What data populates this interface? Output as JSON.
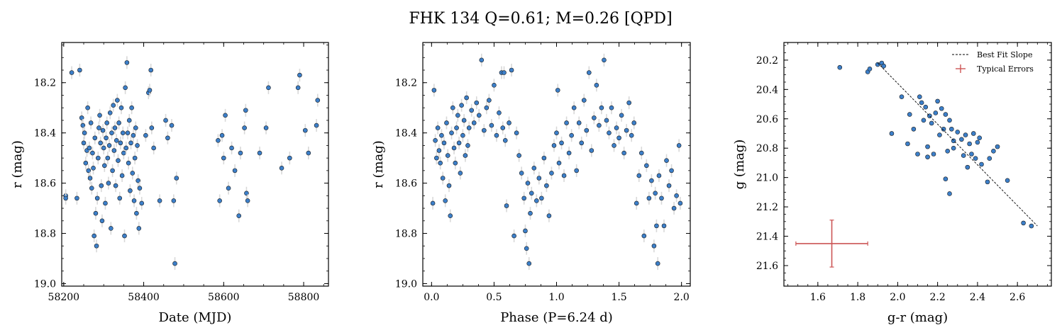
{
  "figure": {
    "title": "FHK 134  Q=0.61; M=0.26 [QPD]"
  },
  "colors": {
    "point_fill": "#3c7fc9",
    "point_edge": "#1a1a1a",
    "errorbar": "#d8d8d8",
    "typical_error": "#cc5555",
    "fit_line": "#000000"
  },
  "chart_data": [
    {
      "type": "scatter",
      "name": "light-curve",
      "xlabel": "Date (MJD)",
      "ylabel": "r (mag)",
      "xlim": [
        58195,
        58862
      ],
      "ylim": [
        19.01,
        18.04
      ],
      "y_inverted": true,
      "xticks": [
        58200,
        58400,
        58600,
        58800
      ],
      "xtick_labels": [
        "58200",
        "58400",
        "58600",
        "58800"
      ],
      "yticks": [
        18.2,
        18.4,
        18.6,
        18.8,
        19.0
      ],
      "ytick_labels": [
        "18.2",
        "18.4",
        "18.6",
        "18.8",
        "19.0"
      ],
      "points": [
        [
          58205,
          18.65
        ],
        [
          58205,
          18.66
        ],
        [
          58220,
          18.16
        ],
        [
          58233,
          18.66
        ],
        [
          58240,
          18.15
        ],
        [
          58245,
          18.34
        ],
        [
          58248,
          18.37
        ],
        [
          58250,
          18.44
        ],
        [
          58252,
          18.4
        ],
        [
          58255,
          18.52
        ],
        [
          58258,
          18.47
        ],
        [
          58260,
          18.3
        ],
        [
          58262,
          18.55
        ],
        [
          58264,
          18.46
        ],
        [
          58266,
          18.58
        ],
        [
          58268,
          18.36
        ],
        [
          58270,
          18.62
        ],
        [
          58272,
          18.48
        ],
        [
          58274,
          18.54
        ],
        [
          58276,
          18.81
        ],
        [
          58278,
          18.42
        ],
        [
          58280,
          18.72
        ],
        [
          58282,
          18.85
        ],
        [
          58284,
          18.66
        ],
        [
          58286,
          18.5
        ],
        [
          58288,
          18.38
        ],
        [
          58290,
          18.33
        ],
        [
          58292,
          18.44
        ],
        [
          58294,
          18.61
        ],
        [
          58296,
          18.75
        ],
        [
          58298,
          18.39
        ],
        [
          58300,
          18.46
        ],
        [
          58302,
          18.53
        ],
        [
          58304,
          18.68
        ],
        [
          58306,
          18.42
        ],
        [
          58308,
          18.36
        ],
        [
          58310,
          18.5
        ],
        [
          58312,
          18.6
        ],
        [
          58314,
          18.45
        ],
        [
          58316,
          18.32
        ],
        [
          58318,
          18.78
        ],
        [
          58320,
          18.4
        ],
        [
          58322,
          18.55
        ],
        [
          58324,
          18.29
        ],
        [
          58326,
          18.47
        ],
        [
          58328,
          18.38
        ],
        [
          58330,
          18.61
        ],
        [
          58332,
          18.43
        ],
        [
          58334,
          18.27
        ],
        [
          58336,
          18.51
        ],
        [
          58338,
          18.36
        ],
        [
          58340,
          18.66
        ],
        [
          58342,
          18.44
        ],
        [
          58344,
          18.3
        ],
        [
          58346,
          18.57
        ],
        [
          58348,
          18.4
        ],
        [
          58350,
          18.48
        ],
        [
          58352,
          18.81
        ],
        [
          58354,
          18.22
        ],
        [
          58356,
          18.46
        ],
        [
          58358,
          18.12
        ],
        [
          58360,
          18.4
        ],
        [
          58362,
          18.52
        ],
        [
          58364,
          18.35
        ],
        [
          58366,
          18.63
        ],
        [
          58368,
          18.44
        ],
        [
          58370,
          18.3
        ],
        [
          58372,
          18.56
        ],
        [
          58374,
          18.41
        ],
        [
          58376,
          18.67
        ],
        [
          58378,
          18.5
        ],
        [
          58380,
          18.38
        ],
        [
          58382,
          18.72
        ],
        [
          58384,
          18.45
        ],
        [
          58386,
          18.59
        ],
        [
          58388,
          18.78
        ],
        [
          58390,
          18.62
        ],
        [
          58395,
          18.68
        ],
        [
          58405,
          18.41
        ],
        [
          58412,
          18.24
        ],
        [
          58415,
          18.23
        ],
        [
          58418,
          18.15
        ],
        [
          58420,
          18.38
        ],
        [
          58425,
          18.46
        ],
        [
          58440,
          18.67
        ],
        [
          58455,
          18.35
        ],
        [
          58460,
          18.42
        ],
        [
          58470,
          18.37
        ],
        [
          58475,
          18.67
        ],
        [
          58478,
          18.92
        ],
        [
          58482,
          18.58
        ],
        [
          58586,
          18.43
        ],
        [
          58590,
          18.67
        ],
        [
          58596,
          18.41
        ],
        [
          58600,
          18.5
        ],
        [
          58604,
          18.33
        ],
        [
          58612,
          18.62
        ],
        [
          58620,
          18.46
        ],
        [
          58628,
          18.55
        ],
        [
          58638,
          18.73
        ],
        [
          58642,
          18.48
        ],
        [
          58652,
          18.38
        ],
        [
          58655,
          18.31
        ],
        [
          58657,
          18.64
        ],
        [
          58660,
          18.67
        ],
        [
          58690,
          18.48
        ],
        [
          58706,
          18.38
        ],
        [
          58712,
          18.22
        ],
        [
          58745,
          18.54
        ],
        [
          58765,
          18.5
        ],
        [
          58786,
          18.22
        ],
        [
          58790,
          18.17
        ],
        [
          58804,
          18.39
        ],
        [
          58812,
          18.48
        ],
        [
          58832,
          18.37
        ],
        [
          58835,
          18.27
        ]
      ]
    },
    {
      "type": "scatter",
      "name": "phase-folded",
      "xlabel": "Phase (P=6.24 d)",
      "ylabel": "r (mag)",
      "xlim": [
        -0.07,
        2.07
      ],
      "ylim": [
        19.01,
        18.04
      ],
      "y_inverted": true,
      "xticks": [
        0.0,
        0.5,
        1.0,
        1.5,
        2.0
      ],
      "xtick_labels": [
        "0.0",
        "0.5",
        "1.0",
        "1.5",
        "2.0"
      ],
      "yticks": [
        18.2,
        18.4,
        18.6,
        18.8,
        19.0
      ],
      "ytick_labels": [
        "18.2",
        "18.4",
        "18.6",
        "18.8",
        "19.0"
      ],
      "points": [
        [
          0.01,
          18.68
        ],
        [
          0.02,
          18.23
        ],
        [
          0.03,
          18.43
        ],
        [
          0.04,
          18.5
        ],
        [
          0.05,
          18.38
        ],
        [
          0.06,
          18.47
        ],
        [
          0.07,
          18.52
        ],
        [
          0.08,
          18.41
        ],
        [
          0.09,
          18.58
        ],
        [
          0.1,
          18.44
        ],
        [
          0.11,
          18.67
        ],
        [
          0.12,
          18.36
        ],
        [
          0.13,
          18.49
        ],
        [
          0.14,
          18.61
        ],
        [
          0.15,
          18.73
        ],
        [
          0.16,
          18.4
        ],
        [
          0.17,
          18.3
        ],
        [
          0.18,
          18.46
        ],
        [
          0.19,
          18.52
        ],
        [
          0.2,
          18.38
        ],
        [
          0.21,
          18.33
        ],
        [
          0.22,
          18.44
        ],
        [
          0.23,
          18.56
        ],
        [
          0.24,
          18.29
        ],
        [
          0.25,
          18.41
        ],
        [
          0.26,
          18.35
        ],
        [
          0.27,
          18.49
        ],
        [
          0.28,
          18.26
        ],
        [
          0.29,
          18.45
        ],
        [
          0.3,
          18.38
        ],
        [
          0.32,
          18.31
        ],
        [
          0.34,
          18.36
        ],
        [
          0.36,
          18.28
        ],
        [
          0.38,
          18.33
        ],
        [
          0.4,
          18.11
        ],
        [
          0.42,
          18.39
        ],
        [
          0.44,
          18.3
        ],
        [
          0.46,
          18.27
        ],
        [
          0.48,
          18.37
        ],
        [
          0.5,
          18.21
        ],
        [
          0.52,
          18.41
        ],
        [
          0.54,
          18.32
        ],
        [
          0.56,
          18.16
        ],
        [
          0.57,
          18.38
        ],
        [
          0.58,
          18.16
        ],
        [
          0.59,
          18.43
        ],
        [
          0.6,
          18.69
        ],
        [
          0.62,
          18.36
        ],
        [
          0.64,
          18.15
        ],
        [
          0.66,
          18.81
        ],
        [
          0.68,
          18.4
        ],
        [
          0.7,
          18.49
        ],
        [
          0.72,
          18.56
        ],
        [
          0.74,
          18.66
        ],
        [
          0.75,
          18.79
        ],
        [
          0.76,
          18.86
        ],
        [
          0.77,
          18.6
        ],
        [
          0.78,
          18.92
        ],
        [
          0.79,
          18.72
        ],
        [
          0.8,
          18.64
        ],
        [
          0.82,
          18.54
        ],
        [
          0.84,
          18.67
        ],
        [
          0.86,
          18.58
        ],
        [
          0.88,
          18.66
        ],
        [
          0.9,
          18.5
        ],
        [
          0.92,
          18.61
        ],
        [
          0.94,
          18.73
        ],
        [
          0.96,
          18.56
        ],
        [
          0.98,
          18.45
        ],
        [
          1.0,
          18.4
        ],
        [
          1.01,
          18.23
        ],
        [
          1.02,
          18.52
        ],
        [
          1.04,
          18.44
        ],
        [
          1.06,
          18.57
        ],
        [
          1.08,
          18.36
        ],
        [
          1.1,
          18.48
        ],
        [
          1.12,
          18.41
        ],
        [
          1.14,
          18.3
        ],
        [
          1.16,
          18.55
        ],
        [
          1.18,
          18.36
        ],
        [
          1.2,
          18.44
        ],
        [
          1.22,
          18.27
        ],
        [
          1.24,
          18.39
        ],
        [
          1.26,
          18.16
        ],
        [
          1.28,
          18.47
        ],
        [
          1.3,
          18.34
        ],
        [
          1.32,
          18.21
        ],
        [
          1.34,
          18.37
        ],
        [
          1.36,
          18.3
        ],
        [
          1.38,
          18.11
        ],
        [
          1.4,
          18.35
        ],
        [
          1.42,
          18.4
        ],
        [
          1.44,
          18.3
        ],
        [
          1.46,
          18.45
        ],
        [
          1.48,
          18.38
        ],
        [
          1.5,
          18.42
        ],
        [
          1.52,
          18.33
        ],
        [
          1.54,
          18.48
        ],
        [
          1.56,
          18.39
        ],
        [
          1.58,
          18.28
        ],
        [
          1.6,
          18.41
        ],
        [
          1.62,
          18.36
        ],
        [
          1.64,
          18.68
        ],
        [
          1.66,
          18.57
        ],
        [
          1.68,
          18.48
        ],
        [
          1.7,
          18.81
        ],
        [
          1.72,
          18.53
        ],
        [
          1.74,
          18.66
        ],
        [
          1.76,
          18.59
        ],
        [
          1.78,
          18.85
        ],
        [
          1.79,
          18.64
        ],
        [
          1.8,
          18.77
        ],
        [
          1.81,
          18.92
        ],
        [
          1.82,
          18.57
        ],
        [
          1.84,
          18.66
        ],
        [
          1.86,
          18.77
        ],
        [
          1.88,
          18.51
        ],
        [
          1.9,
          18.61
        ],
        [
          1.92,
          18.55
        ],
        [
          1.94,
          18.7
        ],
        [
          1.96,
          18.65
        ],
        [
          1.98,
          18.45
        ],
        [
          1.99,
          18.68
        ]
      ]
    },
    {
      "type": "scatter",
      "name": "color-magnitude",
      "xlabel": "g-r (mag)",
      "ylabel": "g (mag)",
      "xlim": [
        1.43,
        2.77
      ],
      "ylim": [
        21.74,
        20.08
      ],
      "y_inverted": true,
      "xticks": [
        1.6,
        1.8,
        2.0,
        2.2,
        2.4,
        2.6
      ],
      "xtick_labels": [
        "1.6",
        "1.8",
        "2.0",
        "2.2",
        "2.4",
        "2.6"
      ],
      "yticks": [
        20.2,
        20.4,
        20.6,
        20.8,
        21.0,
        21.2,
        21.4,
        21.6
      ],
      "ytick_labels": [
        "20.2",
        "20.4",
        "20.6",
        "20.8",
        "21.0",
        "21.2",
        "21.4",
        "21.6"
      ],
      "points": [
        [
          1.71,
          20.25
        ],
        [
          1.85,
          20.28
        ],
        [
          1.86,
          20.26
        ],
        [
          1.9,
          20.23
        ],
        [
          1.92,
          20.22
        ],
        [
          1.93,
          20.24
        ],
        [
          1.97,
          20.7
        ],
        [
          2.02,
          20.45
        ],
        [
          2.05,
          20.77
        ],
        [
          2.06,
          20.57
        ],
        [
          2.08,
          20.67
        ],
        [
          2.1,
          20.84
        ],
        [
          2.11,
          20.45
        ],
        [
          2.12,
          20.49
        ],
        [
          2.13,
          20.61
        ],
        [
          2.14,
          20.52
        ],
        [
          2.15,
          20.79
        ],
        [
          2.16,
          20.58
        ],
        [
          2.17,
          20.63
        ],
        [
          2.18,
          20.84
        ],
        [
          2.19,
          20.56
        ],
        [
          2.2,
          20.48
        ],
        [
          2.21,
          20.71
        ],
        [
          2.22,
          20.53
        ],
        [
          2.23,
          20.67
        ],
        [
          2.24,
          20.57
        ],
        [
          2.25,
          20.82
        ],
        [
          2.26,
          20.61
        ],
        [
          2.27,
          20.67
        ],
        [
          2.28,
          20.75
        ],
        [
          2.3,
          20.69
        ],
        [
          2.32,
          20.74
        ],
        [
          2.33,
          20.85
        ],
        [
          2.34,
          20.71
        ],
        [
          2.35,
          20.93
        ],
        [
          2.36,
          20.77
        ],
        [
          2.37,
          20.84
        ],
        [
          2.38,
          20.7
        ],
        [
          2.39,
          20.87
        ],
        [
          2.4,
          20.76
        ],
        [
          2.41,
          20.73
        ],
        [
          2.42,
          20.91
        ],
        [
          2.45,
          21.03
        ],
        [
          2.46,
          20.87
        ],
        [
          2.48,
          20.82
        ],
        [
          2.5,
          20.79
        ],
        [
          2.24,
          21.01
        ],
        [
          2.26,
          21.11
        ],
        [
          2.28,
          20.8
        ],
        [
          2.55,
          21.02
        ],
        [
          2.63,
          21.31
        ],
        [
          2.67,
          21.33
        ],
        [
          2.15,
          20.86
        ]
      ],
      "fit_line": [
        [
          1.9,
          20.22
        ],
        [
          2.7,
          21.33
        ]
      ],
      "typical_error": {
        "x": 1.67,
        "y": 21.45,
        "xerr": 0.18,
        "yerr": 0.16
      },
      "legend": {
        "position": "top-right",
        "entries": [
          "Best Fit Slope",
          "Typical Errors"
        ]
      }
    }
  ]
}
